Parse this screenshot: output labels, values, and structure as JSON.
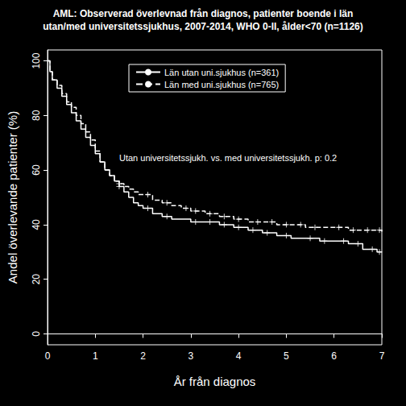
{
  "chart_data": {
    "type": "line",
    "title": "AML: Observerad överlevnad från diagnos, patienter boende i län\nutan/med universitetssjukhus, 2007-2014, WHO 0-II, ålder<70 (n=1126)",
    "x_label": "År från diagnos",
    "y_label": "Andel överlevande patienter (%)",
    "annotation": "Utan universitetssjukh. vs. med universitetssjukh. p: 0.2",
    "x": [
      0,
      0.05,
      0.1,
      0.2,
      0.3,
      0.4,
      0.5,
      0.6,
      0.7,
      0.8,
      0.9,
      1.0,
      1.1,
      1.2,
      1.3,
      1.4,
      1.5,
      1.6,
      1.7,
      1.8,
      1.9,
      2.0,
      2.2,
      2.4,
      2.6,
      2.8,
      3.0,
      3.3,
      3.6,
      3.9,
      4.2,
      4.5,
      4.8,
      5.1,
      5.4,
      5.7,
      6.0,
      6.3,
      6.6,
      6.9,
      7.0
    ],
    "series": [
      {
        "name": "Län utan uni.sjukhus (n=361)",
        "color": "#ffffff",
        "line_style": "solid",
        "marker": "plus",
        "values": [
          100,
          96,
          93,
          90,
          87,
          84,
          81,
          78,
          75,
          72,
          69,
          66,
          63,
          60,
          58,
          56,
          54,
          52,
          50,
          48,
          47,
          46,
          44,
          43,
          42,
          42,
          41,
          41,
          40,
          39,
          38,
          37,
          36,
          35,
          35,
          34,
          34,
          33,
          31,
          30,
          30
        ],
        "censored": [
          [
            1.5,
            54
          ],
          [
            2.1,
            46
          ],
          [
            2.5,
            43
          ],
          [
            3.1,
            41
          ],
          [
            3.4,
            41
          ],
          [
            3.7,
            40
          ],
          [
            4.0,
            39
          ],
          [
            4.3,
            38
          ],
          [
            4.6,
            37
          ],
          [
            5.0,
            36
          ],
          [
            5.5,
            35
          ],
          [
            5.8,
            34
          ],
          [
            6.2,
            34
          ],
          [
            6.5,
            33
          ],
          [
            6.8,
            31
          ],
          [
            6.95,
            30
          ]
        ]
      },
      {
        "name": "Län med uni.sjukhus (n=765)",
        "color": "#ffffff",
        "line_style": "dashed",
        "marker": "plus",
        "values": [
          100,
          96,
          93,
          91,
          88,
          85,
          83,
          80,
          77,
          74,
          71,
          67,
          63,
          60,
          58,
          56,
          55,
          54,
          53,
          52,
          51,
          51,
          49,
          48,
          47,
          46,
          45,
          44,
          43,
          42,
          41,
          41,
          40,
          40,
          39,
          39,
          39,
          38,
          38,
          38,
          37
        ],
        "censored": [
          [
            1.5,
            55
          ],
          [
            2.1,
            51
          ],
          [
            2.5,
            48
          ],
          [
            2.9,
            46
          ],
          [
            3.1,
            45
          ],
          [
            3.4,
            44
          ],
          [
            3.7,
            43
          ],
          [
            4.0,
            42
          ],
          [
            4.4,
            41
          ],
          [
            4.7,
            41
          ],
          [
            5.0,
            40
          ],
          [
            5.3,
            40
          ],
          [
            5.6,
            39
          ],
          [
            6.1,
            39
          ],
          [
            6.4,
            38
          ],
          [
            6.7,
            38
          ],
          [
            6.95,
            38
          ]
        ]
      }
    ],
    "xlim": [
      0,
      7
    ],
    "xticks": [
      0,
      1,
      2,
      3,
      4,
      5,
      6,
      7
    ],
    "ylim": [
      -4,
      104
    ],
    "yticks": [
      0,
      20,
      40,
      60,
      80,
      100
    ],
    "legend": "top",
    "grid": false
  }
}
